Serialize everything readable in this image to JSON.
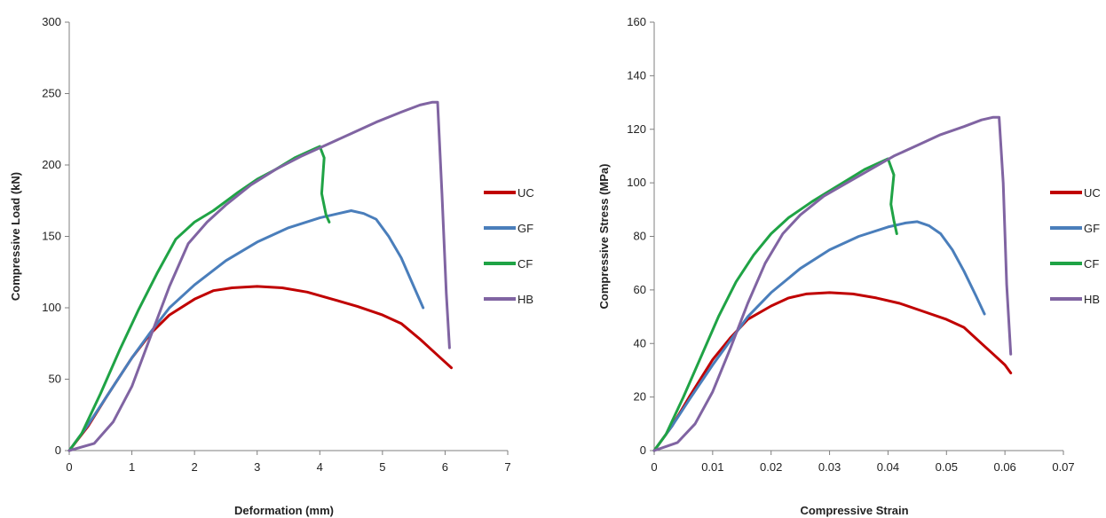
{
  "chart_data": [
    {
      "type": "line",
      "title": "",
      "xlabel": "Deformation (mm)",
      "ylabel": "Compressive Load (kN)",
      "xlim": [
        0,
        7
      ],
      "ylim": [
        0,
        300
      ],
      "xticks": [
        0,
        1,
        2,
        3,
        4,
        5,
        6,
        7
      ],
      "yticks": [
        0,
        50,
        100,
        150,
        200,
        250,
        300
      ],
      "grid": false,
      "legend": "right",
      "series": [
        {
          "name": "UC",
          "color": "#c00000",
          "x": [
            0,
            0.3,
            0.6,
            1.0,
            1.3,
            1.6,
            2.0,
            2.3,
            2.6,
            3.0,
            3.4,
            3.8,
            4.2,
            4.6,
            5.0,
            5.3,
            5.6,
            5.8,
            6.0,
            6.1
          ],
          "y": [
            0,
            17,
            38,
            65,
            82,
            95,
            106,
            112,
            114,
            115,
            114,
            111,
            106,
            101,
            95,
            89,
            78,
            70,
            62,
            58
          ]
        },
        {
          "name": "GF",
          "color": "#4a7ebb",
          "x": [
            0,
            0.3,
            0.6,
            1.0,
            1.3,
            1.6,
            2.0,
            2.5,
            3.0,
            3.5,
            4.0,
            4.3,
            4.5,
            4.7,
            4.9,
            5.1,
            5.3,
            5.5,
            5.65
          ],
          "y": [
            0,
            18,
            38,
            65,
            83,
            100,
            116,
            133,
            146,
            156,
            163,
            166,
            168,
            166,
            162,
            150,
            135,
            115,
            100
          ]
        },
        {
          "name": "CF",
          "color": "#1fa345",
          "x": [
            0,
            0.2,
            0.5,
            0.8,
            1.1,
            1.4,
            1.7,
            2.0,
            2.3,
            2.7,
            3.0,
            3.3,
            3.6,
            3.9,
            4.0,
            4.07,
            4.03,
            4.1,
            4.15
          ],
          "y": [
            0,
            12,
            40,
            70,
            98,
            124,
            148,
            160,
            168,
            181,
            190,
            197,
            205,
            211,
            213,
            205,
            180,
            165,
            160
          ]
        },
        {
          "name": "HB",
          "color": "#8064a2",
          "x": [
            0,
            0.4,
            0.7,
            1.0,
            1.3,
            1.6,
            1.9,
            2.2,
            2.5,
            2.9,
            3.3,
            3.7,
            4.1,
            4.5,
            4.9,
            5.3,
            5.6,
            5.8,
            5.88,
            5.95,
            6.02,
            6.07
          ],
          "y": [
            0,
            5,
            20,
            45,
            80,
            115,
            145,
            160,
            172,
            186,
            197,
            206,
            214,
            222,
            230,
            237,
            242,
            244,
            244,
            180,
            110,
            72
          ]
        }
      ]
    },
    {
      "type": "line",
      "title": "",
      "xlabel": "Compressive Strain",
      "ylabel": "Compressive Stress (MPa)",
      "xlim": [
        0,
        0.07
      ],
      "ylim": [
        0,
        160
      ],
      "xticks": [
        "0",
        "0.01",
        "0.02",
        "0.03",
        "0.04",
        "0.05",
        "0.06",
        "0.07"
      ],
      "yticks": [
        0,
        20,
        40,
        60,
        80,
        100,
        120,
        140,
        160
      ],
      "grid": false,
      "legend": "right",
      "series": [
        {
          "name": "UC",
          "color": "#c00000",
          "x": [
            0,
            0.003,
            0.006,
            0.01,
            0.013,
            0.016,
            0.02,
            0.023,
            0.026,
            0.03,
            0.034,
            0.038,
            0.042,
            0.046,
            0.05,
            0.053,
            0.056,
            0.058,
            0.06,
            0.061
          ],
          "y": [
            0,
            9,
            20,
            34,
            42,
            49,
            54,
            57,
            58.5,
            59,
            58.5,
            57,
            55,
            52,
            49,
            46,
            40,
            36,
            32,
            29
          ]
        },
        {
          "name": "GF",
          "color": "#4a7ebb",
          "x": [
            0,
            0.003,
            0.006,
            0.01,
            0.013,
            0.016,
            0.02,
            0.025,
            0.03,
            0.035,
            0.04,
            0.043,
            0.045,
            0.047,
            0.049,
            0.051,
            0.053,
            0.055,
            0.0565
          ],
          "y": [
            0,
            9,
            19,
            32,
            41,
            50,
            59,
            68,
            75,
            80,
            83.5,
            85,
            85.5,
            84,
            81,
            75,
            67,
            58,
            51
          ]
        },
        {
          "name": "CF",
          "color": "#1fa345",
          "x": [
            0,
            0.002,
            0.005,
            0.008,
            0.011,
            0.014,
            0.017,
            0.02,
            0.023,
            0.027,
            0.03,
            0.033,
            0.036,
            0.039,
            0.04,
            0.041,
            0.0405,
            0.041,
            0.0415
          ],
          "y": [
            0,
            6,
            20,
            35,
            50,
            63,
            73,
            81,
            87,
            93,
            97,
            101,
            105,
            108,
            109,
            103,
            92,
            86,
            81
          ]
        },
        {
          "name": "HB",
          "color": "#8064a2",
          "x": [
            0,
            0.004,
            0.007,
            0.01,
            0.013,
            0.016,
            0.019,
            0.022,
            0.025,
            0.029,
            0.033,
            0.037,
            0.041,
            0.045,
            0.049,
            0.053,
            0.056,
            0.058,
            0.059,
            0.0597,
            0.0603,
            0.061
          ],
          "y": [
            0,
            3,
            10,
            22,
            38,
            55,
            70,
            81,
            88,
            95,
            100,
            105,
            110,
            114,
            118,
            121,
            123.5,
            124.5,
            124.5,
            100,
            62,
            36
          ]
        }
      ]
    }
  ]
}
